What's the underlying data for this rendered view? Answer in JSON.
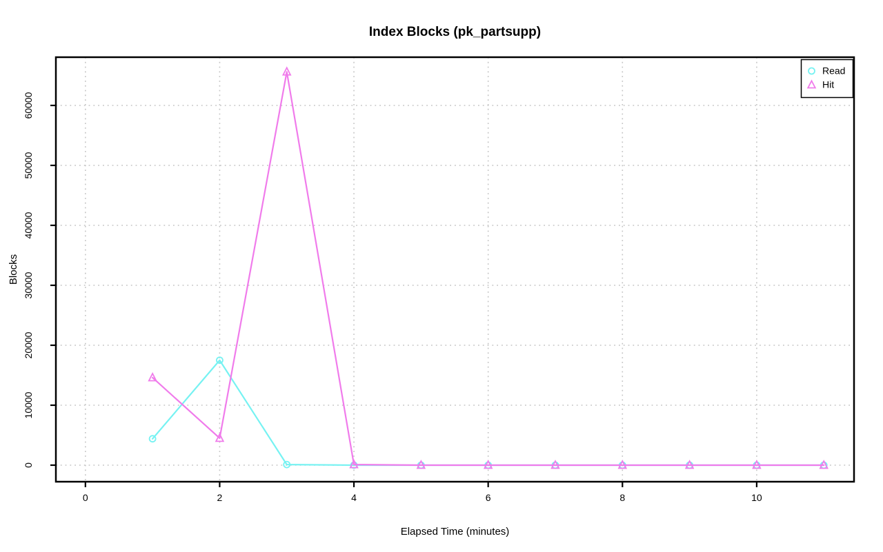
{
  "chart_data": {
    "type": "line",
    "title": "Index Blocks (pk_partsupp)",
    "xlabel": "Elapsed Time (minutes)",
    "ylabel": "Blocks",
    "x": [
      1,
      2,
      3,
      4,
      5,
      6,
      7,
      8,
      9,
      10,
      11
    ],
    "series": [
      {
        "name": "Read",
        "marker": "circle",
        "color": "#76F2F2",
        "values": [
          4400,
          17500,
          100,
          0,
          0,
          0,
          0,
          0,
          0,
          0,
          0
        ]
      },
      {
        "name": "Hit",
        "marker": "triangle",
        "color": "#F07BEB",
        "values": [
          14600,
          4500,
          65600,
          100,
          0,
          0,
          0,
          0,
          0,
          0,
          0
        ]
      }
    ],
    "xticks": [
      0,
      2,
      4,
      6,
      8,
      10
    ],
    "yticks": [
      0,
      10000,
      20000,
      30000,
      40000,
      50000,
      60000
    ],
    "xlim": [
      -0.44,
      11.45
    ],
    "ylim": [
      -2760,
      68045
    ],
    "grid": {
      "style": "dotted",
      "color": "#C4C4C4"
    },
    "legend": {
      "position": "top-right",
      "entries": [
        "Read",
        "Hit"
      ]
    },
    "axis_color": "#000000",
    "background": "#FFFFFF"
  }
}
